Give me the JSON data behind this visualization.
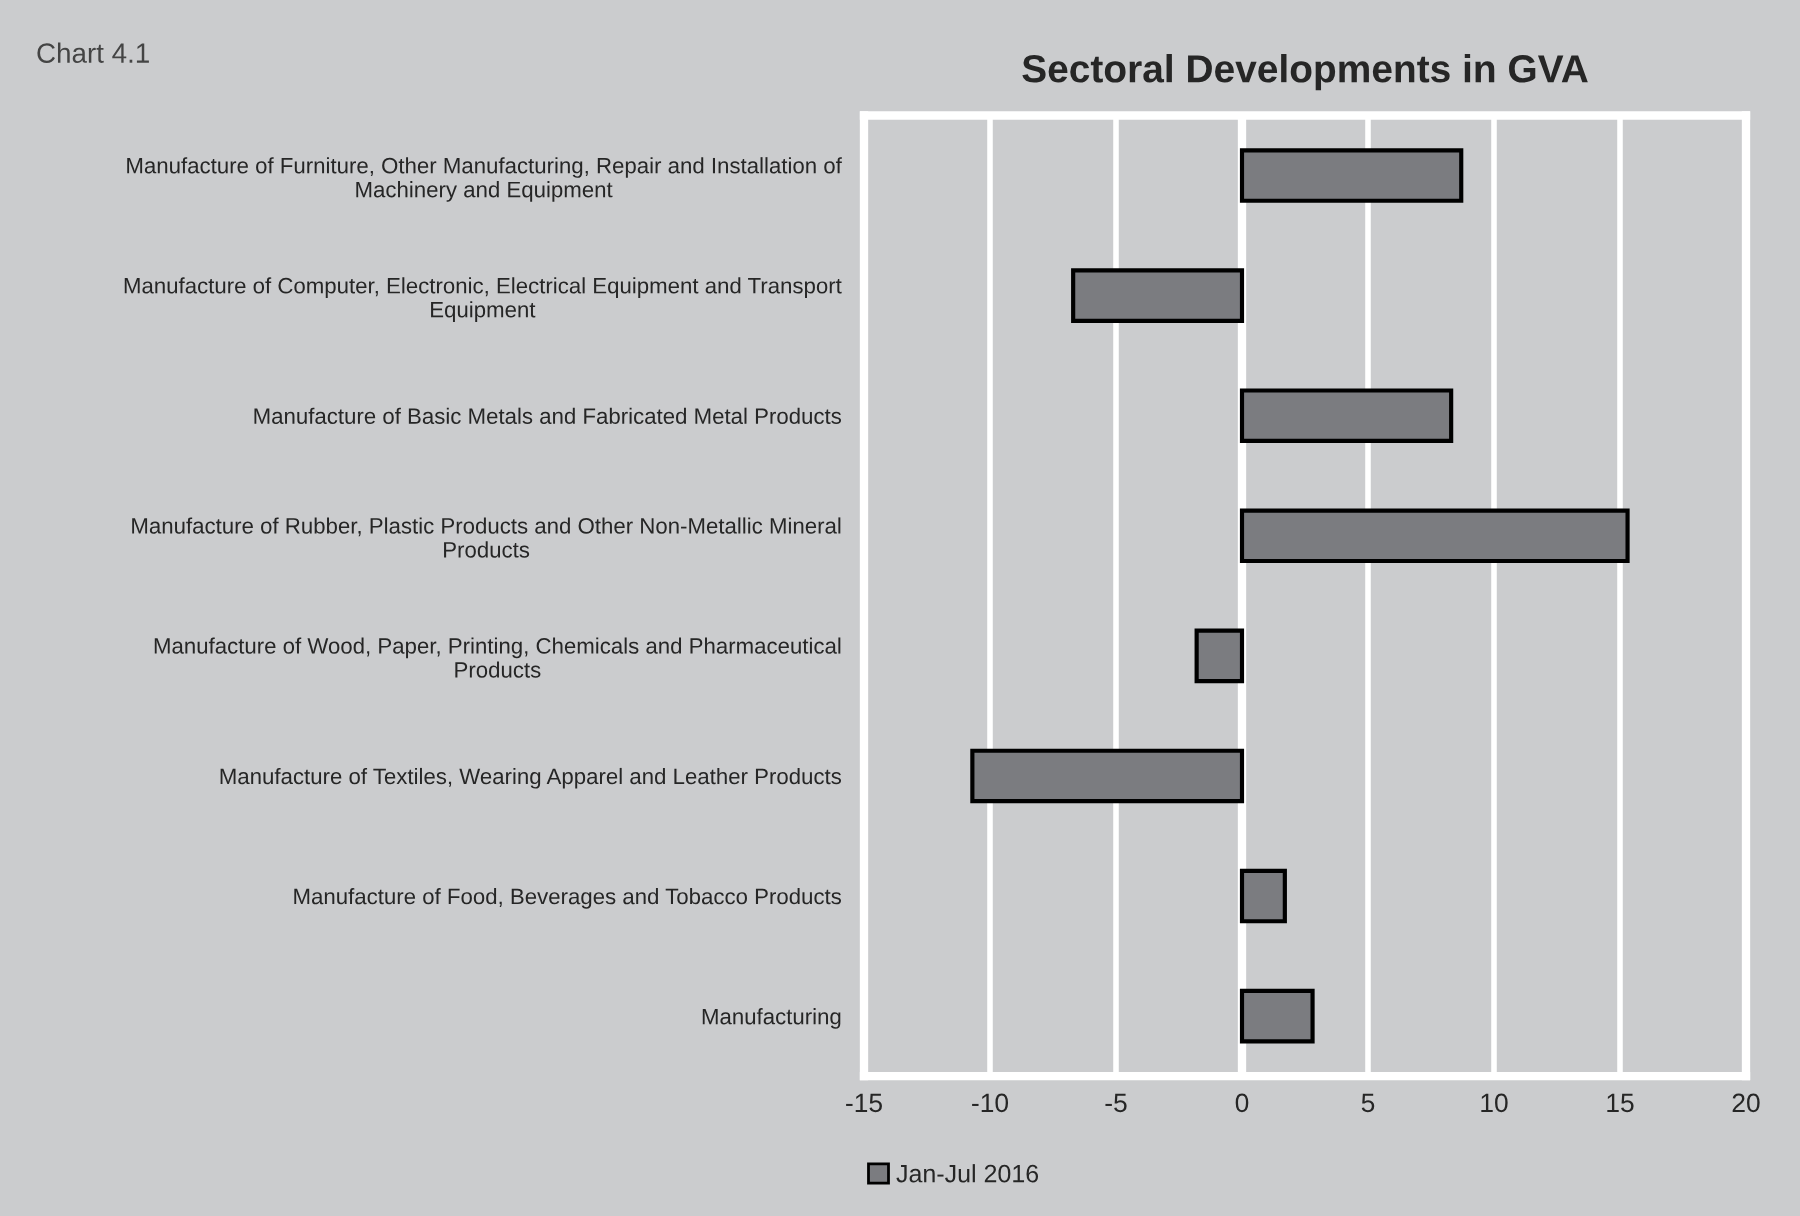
{
  "chart_data": {
    "type": "bar",
    "orientation": "horizontal",
    "title": "Sectoral Developments in GVA",
    "annotations": [
      "Chart 4.1"
    ],
    "categories": [
      "Manufacture of Furniture, Other Manufacturing, Repair and Installation of\nMachinery and Equipment",
      "Manufacture of Computer, Electronic, Electrical Equipment and Transport\nEquipment",
      "Manufacture of Basic Metals and Fabricated Metal Products",
      "Manufacture of Rubber, Plastic Products and Other Non-Metallic Mineral\nProducts",
      "Manufacture of Wood, Paper, Printing, Chemicals and Pharmaceutical\nProducts",
      "Manufacture of Textiles, Wearing Apparel and Leather Products",
      "Manufacture of Food, Beverages and Tobacco Products",
      "Manufacturing"
    ],
    "series": [
      {
        "name": "Jan-Jul 2016",
        "color": "#7b7c80",
        "values": [
          8.7,
          -6.7,
          8.3,
          15.3,
          -1.8,
          -10.7,
          1.7,
          2.8
        ]
      }
    ],
    "xlim": [
      -15,
      20
    ],
    "xticks": [
      -15,
      -10,
      -5,
      0,
      5,
      10,
      15,
      20
    ],
    "grid": "x",
    "legend": "bottom left"
  }
}
